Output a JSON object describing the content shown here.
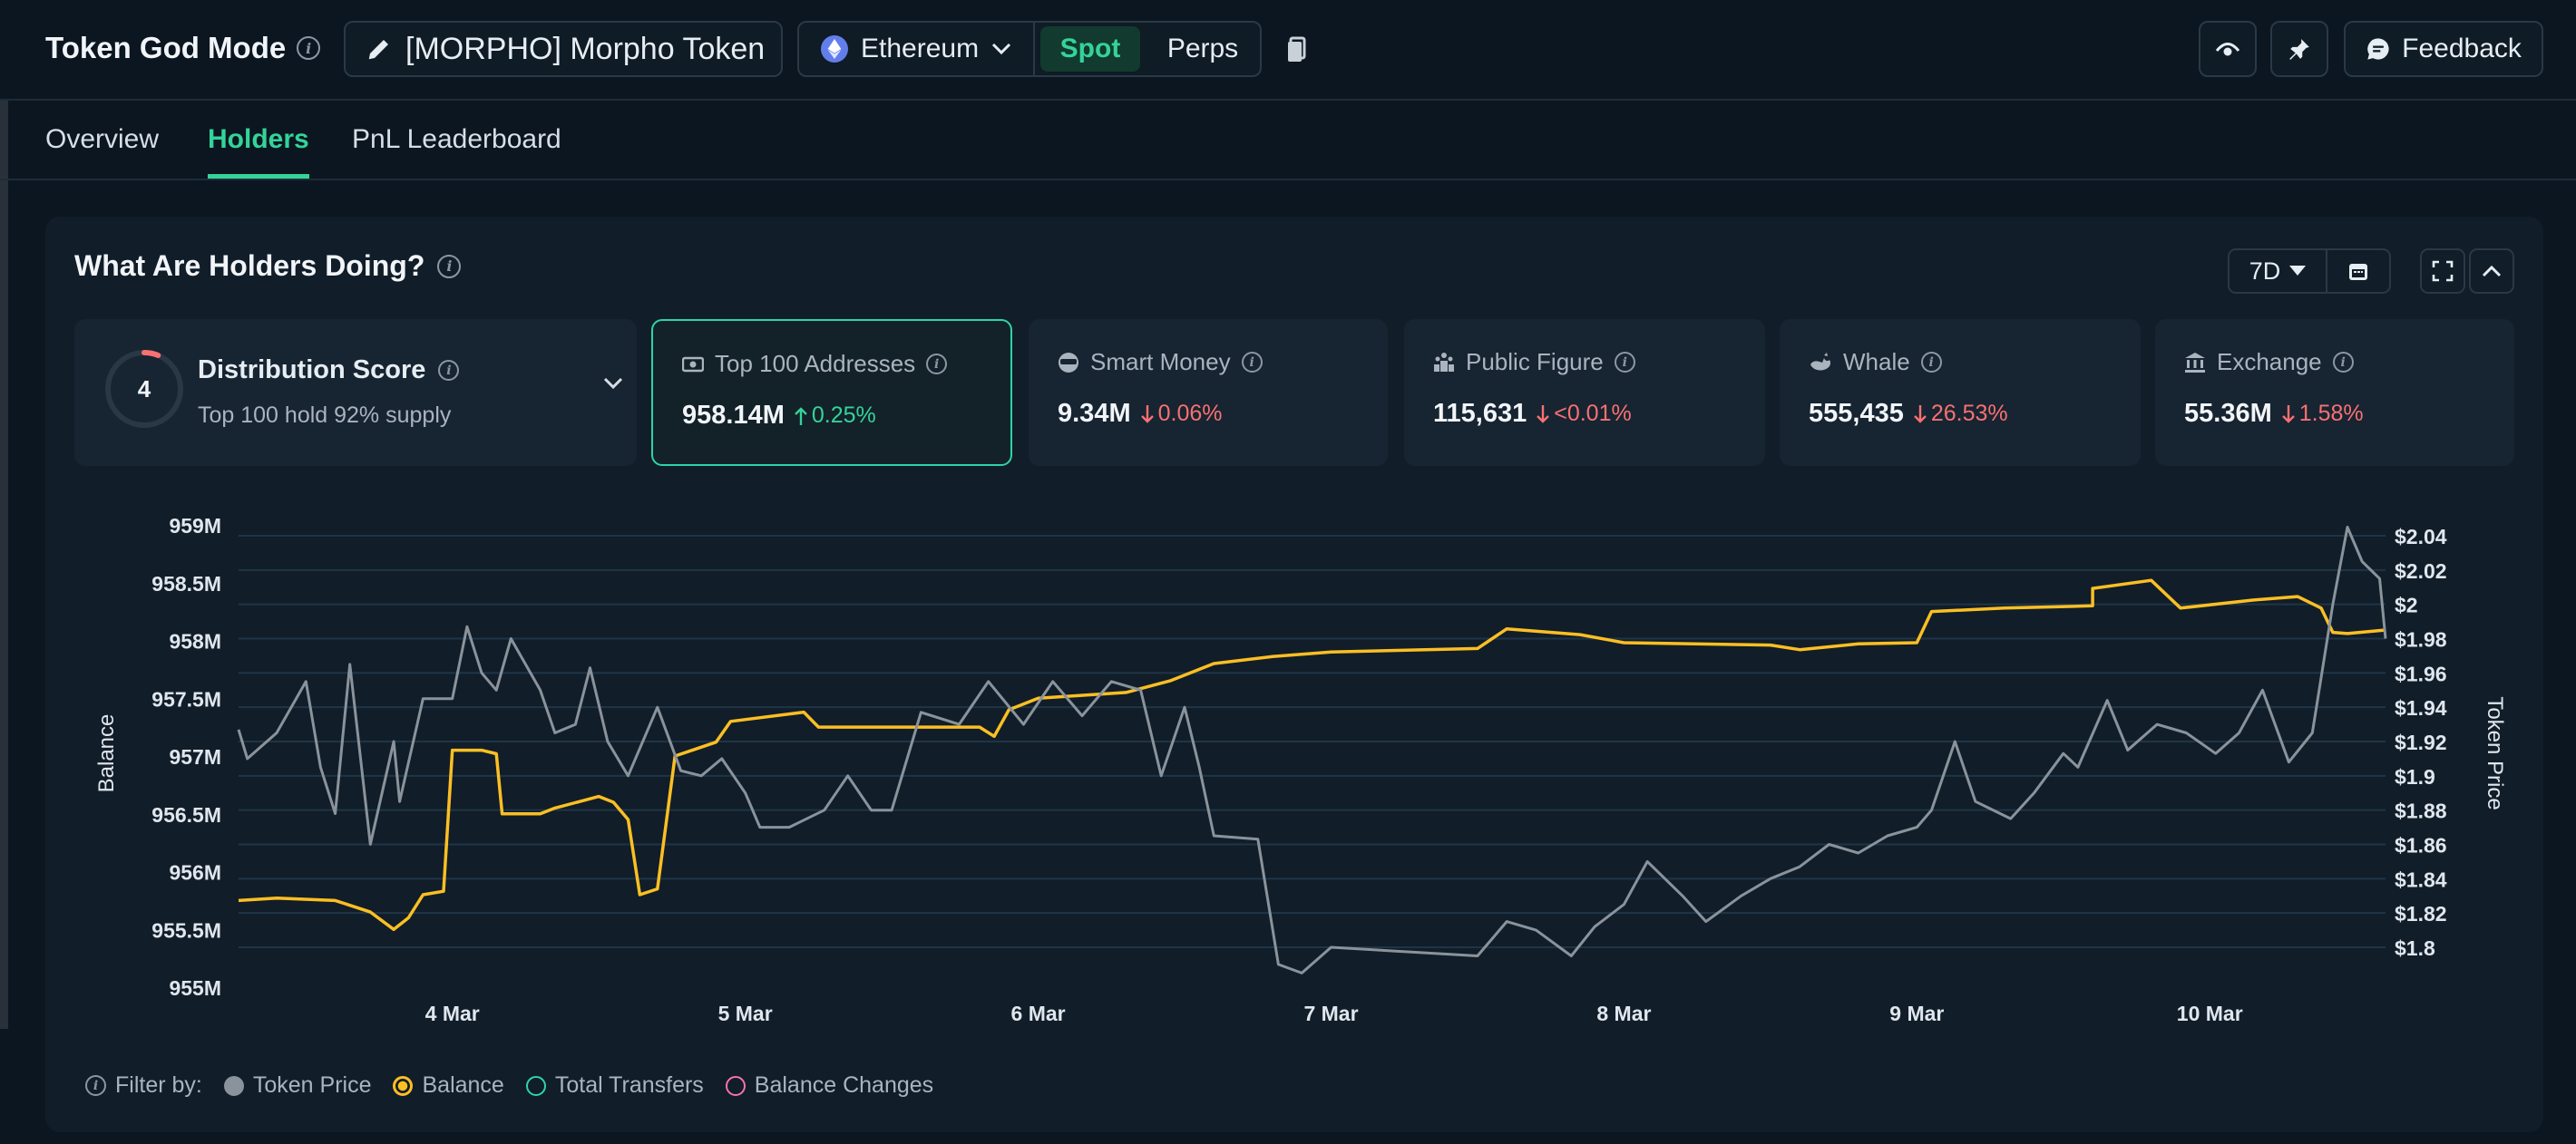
{
  "header": {
    "app_title": "Token God Mode",
    "token_label": "[MORPHO] Morpho Token",
    "chain": "Ethereum",
    "market_tabs": [
      "Spot",
      "Perps"
    ],
    "active_market": "Spot",
    "feedback_label": "Feedback"
  },
  "nav": {
    "tabs": [
      "Overview",
      "Holders",
      "PnL Leaderboard"
    ],
    "active": "Holders"
  },
  "panel": {
    "title": "What Are Holders Doing?",
    "period": "7D"
  },
  "distribution": {
    "score": "4",
    "title": "Distribution Score",
    "subtitle": "Top 100 hold 92% supply"
  },
  "cards": [
    {
      "label": "Top 100 Addresses",
      "icon": "cash-icon",
      "value": "958.14M",
      "change": "0.25%",
      "direction": "up"
    },
    {
      "label": "Smart Money",
      "icon": "sunglasses-icon",
      "value": "9.34M",
      "change": "0.06%",
      "direction": "down"
    },
    {
      "label": "Public Figure",
      "icon": "podium-icon",
      "value": "115,631",
      "change": "<0.01%",
      "direction": "down"
    },
    {
      "label": "Whale",
      "icon": "whale-icon",
      "value": "555,435",
      "change": "26.53%",
      "direction": "down"
    },
    {
      "label": "Exchange",
      "icon": "bank-icon",
      "value": "55.36M",
      "change": "1.58%",
      "direction": "down"
    }
  ],
  "chart_data": {
    "type": "line",
    "ylabel": "Balance",
    "y2label": "Token Price",
    "y_ticks": [
      "959M",
      "958.5M",
      "958M",
      "957.5M",
      "957M",
      "956.5M",
      "956M",
      "955.5M",
      "955M"
    ],
    "y2_ticks": [
      "$2.04",
      "$2.02",
      "$2",
      "$1.98",
      "$1.96",
      "$1.94",
      "$1.92",
      "$1.9",
      "$1.88",
      "$1.86",
      "$1.84",
      "$1.82",
      "$1.8"
    ],
    "x_ticks": [
      "4 Mar",
      "5 Mar",
      "6 Mar",
      "7 Mar",
      "8 Mar",
      "9 Mar",
      "10 Mar"
    ],
    "ylim": [
      955,
      959
    ],
    "y2lim": [
      1.8,
      2.04
    ],
    "x_range_days": [
      3.27,
      10.6
    ],
    "grid": true,
    "series": [
      {
        "name": "Balance",
        "color": "#fbbf24",
        "axis": "left",
        "points": [
          [
            3.27,
            955.75
          ],
          [
            3.4,
            955.77
          ],
          [
            3.6,
            955.75
          ],
          [
            3.72,
            955.65
          ],
          [
            3.8,
            955.5
          ],
          [
            3.85,
            955.6
          ],
          [
            3.9,
            955.8
          ],
          [
            3.97,
            955.83
          ],
          [
            4.0,
            957.05
          ],
          [
            4.1,
            957.05
          ],
          [
            4.15,
            957.02
          ],
          [
            4.17,
            956.5
          ],
          [
            4.3,
            956.5
          ],
          [
            4.35,
            956.55
          ],
          [
            4.5,
            956.65
          ],
          [
            4.55,
            956.6
          ],
          [
            4.6,
            956.45
          ],
          [
            4.64,
            955.8
          ],
          [
            4.7,
            955.85
          ],
          [
            4.76,
            957.0
          ],
          [
            4.9,
            957.12
          ],
          [
            4.95,
            957.3
          ],
          [
            5.2,
            957.38
          ],
          [
            5.25,
            957.25
          ],
          [
            5.5,
            957.25
          ],
          [
            5.8,
            957.25
          ],
          [
            5.85,
            957.17
          ],
          [
            5.9,
            957.4
          ],
          [
            6.0,
            957.5
          ],
          [
            6.3,
            957.55
          ],
          [
            6.45,
            957.65
          ],
          [
            6.6,
            957.8
          ],
          [
            6.8,
            957.86
          ],
          [
            7.0,
            957.9
          ],
          [
            7.5,
            957.93
          ],
          [
            7.6,
            958.1
          ],
          [
            7.85,
            958.05
          ],
          [
            8.0,
            957.98
          ],
          [
            8.5,
            957.96
          ],
          [
            8.6,
            957.92
          ],
          [
            8.8,
            957.97
          ],
          [
            9.0,
            957.98
          ],
          [
            9.05,
            958.25
          ],
          [
            9.3,
            958.28
          ],
          [
            9.6,
            958.3
          ],
          [
            9.6,
            958.45
          ],
          [
            9.8,
            958.52
          ],
          [
            9.9,
            958.28
          ],
          [
            10.15,
            958.35
          ],
          [
            10.3,
            958.38
          ],
          [
            10.38,
            958.28
          ],
          [
            10.42,
            958.07
          ],
          [
            10.47,
            958.06
          ],
          [
            10.6,
            958.09
          ]
        ]
      },
      {
        "name": "Token Price",
        "color": "#8a939c",
        "axis": "right",
        "points": [
          [
            3.27,
            1.927
          ],
          [
            3.3,
            1.91
          ],
          [
            3.4,
            1.925
          ],
          [
            3.5,
            1.955
          ],
          [
            3.55,
            1.905
          ],
          [
            3.6,
            1.878
          ],
          [
            3.65,
            1.965
          ],
          [
            3.72,
            1.86
          ],
          [
            3.8,
            1.92
          ],
          [
            3.82,
            1.885
          ],
          [
            3.9,
            1.945
          ],
          [
            4.0,
            1.945
          ],
          [
            4.05,
            1.987
          ],
          [
            4.1,
            1.96
          ],
          [
            4.15,
            1.95
          ],
          [
            4.2,
            1.98
          ],
          [
            4.3,
            1.95
          ],
          [
            4.35,
            1.925
          ],
          [
            4.42,
            1.93
          ],
          [
            4.47,
            1.963
          ],
          [
            4.53,
            1.92
          ],
          [
            4.6,
            1.9
          ],
          [
            4.7,
            1.94
          ],
          [
            4.78,
            1.903
          ],
          [
            4.85,
            1.9
          ],
          [
            4.92,
            1.91
          ],
          [
            5.0,
            1.89
          ],
          [
            5.05,
            1.87
          ],
          [
            5.15,
            1.87
          ],
          [
            5.27,
            1.88
          ],
          [
            5.35,
            1.9
          ],
          [
            5.43,
            1.88
          ],
          [
            5.5,
            1.88
          ],
          [
            5.6,
            1.937
          ],
          [
            5.73,
            1.93
          ],
          [
            5.83,
            1.955
          ],
          [
            5.95,
            1.93
          ],
          [
            6.05,
            1.955
          ],
          [
            6.15,
            1.935
          ],
          [
            6.25,
            1.955
          ],
          [
            6.35,
            1.95
          ],
          [
            6.42,
            1.9
          ],
          [
            6.5,
            1.94
          ],
          [
            6.55,
            1.905
          ],
          [
            6.6,
            1.865
          ],
          [
            6.75,
            1.863
          ],
          [
            6.82,
            1.79
          ],
          [
            6.9,
            1.785
          ],
          [
            7.0,
            1.8
          ],
          [
            7.5,
            1.795
          ],
          [
            7.6,
            1.815
          ],
          [
            7.7,
            1.81
          ],
          [
            7.82,
            1.795
          ],
          [
            7.9,
            1.812
          ],
          [
            8.0,
            1.825
          ],
          [
            8.08,
            1.85
          ],
          [
            8.2,
            1.83
          ],
          [
            8.28,
            1.815
          ],
          [
            8.4,
            1.83
          ],
          [
            8.5,
            1.84
          ],
          [
            8.6,
            1.847
          ],
          [
            8.7,
            1.86
          ],
          [
            8.8,
            1.855
          ],
          [
            8.9,
            1.865
          ],
          [
            9.0,
            1.87
          ],
          [
            9.05,
            1.88
          ],
          [
            9.13,
            1.92
          ],
          [
            9.2,
            1.885
          ],
          [
            9.32,
            1.875
          ],
          [
            9.4,
            1.89
          ],
          [
            9.5,
            1.913
          ],
          [
            9.55,
            1.905
          ],
          [
            9.65,
            1.944
          ],
          [
            9.72,
            1.915
          ],
          [
            9.82,
            1.93
          ],
          [
            9.92,
            1.925
          ],
          [
            10.02,
            1.913
          ],
          [
            10.1,
            1.925
          ],
          [
            10.18,
            1.95
          ],
          [
            10.27,
            1.908
          ],
          [
            10.35,
            1.925
          ],
          [
            10.42,
            2.0
          ],
          [
            10.47,
            2.045
          ],
          [
            10.52,
            2.025
          ],
          [
            10.58,
            2.015
          ],
          [
            10.6,
            1.98
          ]
        ]
      }
    ]
  },
  "filter": {
    "label": "Filter by:",
    "items": [
      {
        "label": "Token Price",
        "state": "filled-gray"
      },
      {
        "label": "Balance",
        "state": "selected-yellow"
      },
      {
        "label": "Total Transfers",
        "state": "outline-teal"
      },
      {
        "label": "Balance Changes",
        "state": "outline-pink"
      }
    ]
  }
}
